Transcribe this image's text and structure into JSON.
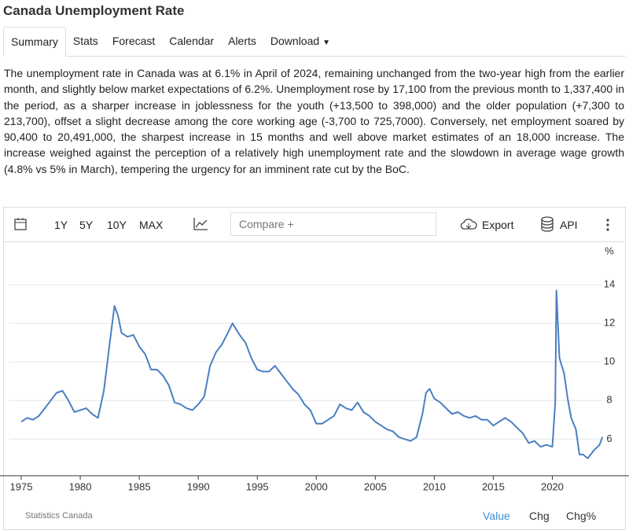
{
  "header": {
    "title": "Canada Unemployment Rate"
  },
  "tabs": [
    "Summary",
    "Stats",
    "Forecast",
    "Calendar",
    "Alerts",
    "Download"
  ],
  "summary": {
    "text": "The unemployment rate in Canada was at 6.1% in April of 2024, remaining unchanged from the two-year high from the earlier month, and slightly below market expectations of 6.2%. Unemployment rose by 17,100 from the previous month to 1,337,400 in the period, as a sharper increase in joblessness for the youth (+13,500 to 398,000) and the older population (+7,300 to 213,700), offset a slight decrease among the core working age (-3,700 to 725,7000). Conversely, net employment soared by 90,400 to 20,491,000, the sharpest increase in 15 months and well above market estimates of an 18,000 increase. The increase weighed against the perception of a relatively high unemployment rate and the slowdown in average wage growth (4.8% vs 5% in March), tempering the urgency for an imminent rate cut by the BoC.",
    "source": "source: Statistics Canada"
  },
  "toolbar": {
    "ranges": [
      "1Y",
      "5Y",
      "10Y",
      "MAX"
    ],
    "compare": "Compare +",
    "export": "Export",
    "api": "API"
  },
  "chart_data": {
    "type": "line",
    "unit_label": "%",
    "color": "#4a7fc1",
    "grid": true,
    "x": [
      1975.0,
      1975.5,
      1976.0,
      1976.5,
      1977.0,
      1977.5,
      1978.0,
      1978.5,
      1979.0,
      1979.5,
      1980.0,
      1980.5,
      1981.0,
      1981.5,
      1982.0,
      1982.5,
      1982.9,
      1983.2,
      1983.5,
      1984.0,
      1984.5,
      1985.0,
      1985.5,
      1986.0,
      1986.5,
      1987.0,
      1987.5,
      1988.0,
      1988.5,
      1989.0,
      1989.5,
      1990.0,
      1990.5,
      1991.0,
      1991.5,
      1992.0,
      1992.5,
      1992.9,
      1993.5,
      1994.0,
      1994.5,
      1995.0,
      1995.5,
      1996.0,
      1996.5,
      1997.0,
      1997.5,
      1998.0,
      1998.5,
      1999.0,
      1999.5,
      2000.0,
      2000.5,
      2001.0,
      2001.5,
      2002.0,
      2002.5,
      2003.0,
      2003.5,
      2004.0,
      2004.5,
      2005.0,
      2005.5,
      2006.0,
      2006.5,
      2007.0,
      2007.5,
      2008.0,
      2008.5,
      2009.0,
      2009.3,
      2009.6,
      2010.0,
      2010.5,
      2011.0,
      2011.5,
      2012.0,
      2012.5,
      2013.0,
      2013.5,
      2014.0,
      2014.5,
      2015.0,
      2015.5,
      2016.0,
      2016.5,
      2017.0,
      2017.5,
      2018.0,
      2018.5,
      2019.0,
      2019.5,
      2020.0,
      2020.25,
      2020.35,
      2020.6,
      2021.0,
      2021.3,
      2021.6,
      2022.0,
      2022.3,
      2022.6,
      2023.0,
      2023.5,
      2024.0,
      2024.25
    ],
    "values": [
      6.9,
      7.1,
      7.0,
      7.2,
      7.6,
      8.0,
      8.4,
      8.5,
      8.0,
      7.4,
      7.5,
      7.6,
      7.3,
      7.1,
      8.5,
      11.0,
      12.9,
      12.4,
      11.5,
      11.3,
      11.4,
      10.8,
      10.4,
      9.6,
      9.6,
      9.3,
      8.8,
      7.9,
      7.8,
      7.6,
      7.5,
      7.8,
      8.2,
      9.8,
      10.5,
      10.9,
      11.5,
      12.0,
      11.4,
      11.0,
      10.2,
      9.6,
      9.5,
      9.5,
      9.8,
      9.4,
      9.0,
      8.6,
      8.3,
      7.8,
      7.5,
      6.8,
      6.8,
      7.0,
      7.2,
      7.8,
      7.6,
      7.5,
      7.9,
      7.4,
      7.2,
      6.9,
      6.7,
      6.5,
      6.4,
      6.1,
      6.0,
      5.9,
      6.1,
      7.3,
      8.4,
      8.6,
      8.1,
      7.9,
      7.6,
      7.3,
      7.4,
      7.2,
      7.1,
      7.2,
      7.0,
      7.0,
      6.7,
      6.9,
      7.1,
      6.9,
      6.6,
      6.3,
      5.8,
      5.9,
      5.6,
      5.7,
      5.6,
      7.9,
      13.7,
      10.2,
      9.4,
      8.1,
      7.1,
      6.5,
      5.2,
      5.2,
      5.0,
      5.4,
      5.7,
      6.1
    ],
    "xlim": [
      1974,
      2024.5
    ],
    "xticks": [
      1975,
      1980,
      1985,
      1990,
      1995,
      2000,
      2005,
      2010,
      2015,
      2020
    ],
    "ylim": [
      4.1,
      14.9
    ],
    "yticks": [
      6,
      8,
      10,
      12,
      14
    ]
  },
  "footer": {
    "source": "Statistics Canada",
    "views": [
      "Value",
      "Chg",
      "Chg%"
    ]
  }
}
